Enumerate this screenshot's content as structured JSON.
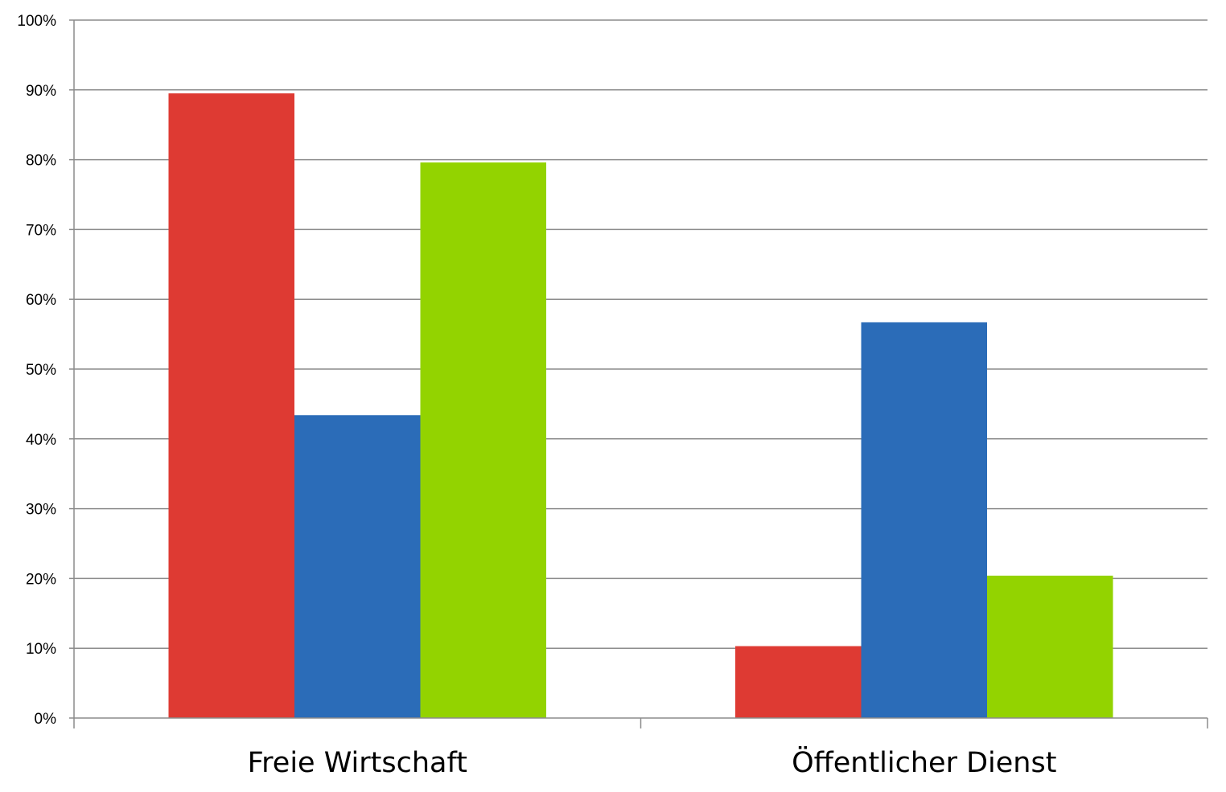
{
  "chart_data": {
    "type": "bar",
    "categories": [
      "Freie Wirtschaft",
      "Öffentlicher Dienst"
    ],
    "series": [
      {
        "values": [
          89.5,
          10.3
        ],
        "color": "#de3a33"
      },
      {
        "values": [
          43.4,
          56.7
        ],
        "color": "#2b6cb8"
      },
      {
        "values": [
          79.6,
          20.4
        ],
        "color": "#93d300"
      }
    ],
    "ylim": [
      0,
      100
    ],
    "yticks": [
      0,
      10,
      20,
      30,
      40,
      50,
      60,
      70,
      80,
      90,
      100
    ],
    "ytick_labels": [
      "0%",
      "10%",
      "20%",
      "30%",
      "40%",
      "50%",
      "60%",
      "70%",
      "80%",
      "90%",
      "100%"
    ],
    "grid": true,
    "title": "",
    "xlabel": "",
    "ylabel": ""
  }
}
